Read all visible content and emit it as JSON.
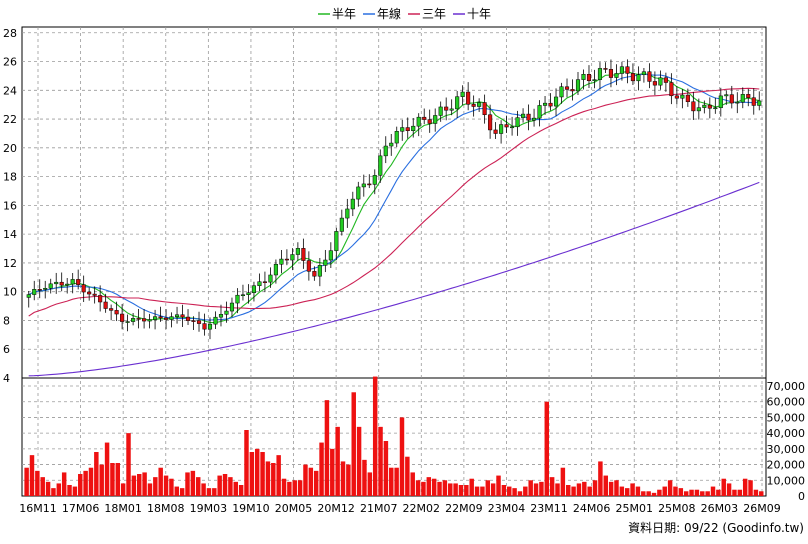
{
  "legend": [
    {
      "label": "半年",
      "color": "#22b822"
    },
    {
      "label": "年線",
      "color": "#2a6fe0"
    },
    {
      "label": "三年",
      "color": "#cc2255"
    },
    {
      "label": "十年",
      "color": "#6a2fd0"
    }
  ],
  "footer": "資料日期: 09/22 (Goodinfo.tw)",
  "chart_data": {
    "type": "candlestick",
    "x_ticks": [
      "16M11",
      "17M06",
      "18M01",
      "18M08",
      "19M03",
      "19M10",
      "20M05",
      "20M12",
      "21M07",
      "22M02",
      "22M09",
      "23M04",
      "23M11",
      "24M06",
      "25M01",
      "25M08",
      "26M03",
      "26M09"
    ],
    "price_axis": {
      "ticks": [
        4,
        6,
        8,
        10,
        12,
        14,
        16,
        18,
        20,
        22,
        24,
        26,
        28
      ],
      "ylim": [
        4,
        28.4
      ]
    },
    "volume_axis": {
      "ticks": [
        "0",
        "10,000",
        "20,000",
        "30,000",
        "40,000",
        "50,000",
        "60,000",
        "70,000"
      ],
      "ylim": [
        0,
        70000
      ]
    },
    "grid": true,
    "colors": {
      "up": "#22cc22",
      "down": "#dd1111",
      "volume": "#ee1111"
    },
    "price_anchors": [
      [
        0,
        9.8
      ],
      [
        3,
        10.4
      ],
      [
        8,
        10.7
      ],
      [
        13,
        9.3
      ],
      [
        17,
        8.0
      ],
      [
        22,
        8.1
      ],
      [
        28,
        8.3
      ],
      [
        32,
        7.5
      ],
      [
        35,
        8.4
      ],
      [
        38,
        9.6
      ],
      [
        43,
        10.8
      ],
      [
        46,
        12.2
      ],
      [
        49,
        12.8
      ],
      [
        52,
        11.0
      ],
      [
        55,
        13.0
      ],
      [
        58,
        16.0
      ],
      [
        61,
        17.5
      ],
      [
        63,
        18.0
      ],
      [
        65,
        20.3
      ],
      [
        69,
        21.5
      ],
      [
        74,
        22.2
      ],
      [
        79,
        23.6
      ],
      [
        82,
        22.8
      ],
      [
        85,
        21.0
      ],
      [
        88,
        21.8
      ],
      [
        92,
        22.3
      ],
      [
        96,
        23.6
      ],
      [
        100,
        24.6
      ],
      [
        104,
        25.2
      ],
      [
        107,
        25.3
      ],
      [
        111,
        25.0
      ],
      [
        115,
        24.6
      ],
      [
        119,
        23.3
      ],
      [
        123,
        22.6
      ],
      [
        126,
        23.4
      ],
      [
        129,
        23.4
      ],
      [
        133,
        23.3
      ]
    ],
    "volume_values": [
      18000,
      26000,
      16000,
      12000,
      9000,
      5000,
      8000,
      15000,
      7000,
      6000,
      14000,
      16000,
      18000,
      28000,
      20000,
      34000,
      21000,
      21000,
      8000,
      40000,
      13000,
      14000,
      15000,
      8000,
      12000,
      18000,
      13000,
      11000,
      6000,
      5000,
      15000,
      16000,
      12000,
      8000,
      5000,
      5000,
      13000,
      14000,
      12000,
      9000,
      7000,
      42000,
      28000,
      30000,
      28000,
      22000,
      21000,
      26000,
      11000,
      9000,
      10000,
      10000,
      20000,
      18000,
      16000,
      34000,
      61000,
      30000,
      44000,
      22000,
      20000,
      66000,
      44000,
      23000,
      15000,
      76000,
      44000,
      35000,
      18000,
      18000,
      50000,
      25000,
      15000,
      10000,
      9000,
      12000,
      11000,
      9000,
      10000,
      8000,
      8000,
      7000,
      7000,
      11000,
      6000,
      6000,
      10000,
      8000,
      13000,
      7000,
      6000,
      5000,
      3000,
      6000,
      10000,
      8000,
      9000,
      60000,
      12000,
      8000,
      18000,
      7000,
      6000,
      8000,
      9000,
      6000,
      10000,
      22000,
      13000,
      9000,
      10000,
      6000,
      5000,
      8000,
      6000,
      3000,
      3000,
      2000,
      4000,
      6000,
      10000,
      6000,
      5000,
      3000,
      4000,
      4000,
      3000,
      3000,
      6000,
      4000,
      11000,
      8000,
      4000,
      4000,
      11000,
      10000,
      4000,
      3000
    ]
  }
}
